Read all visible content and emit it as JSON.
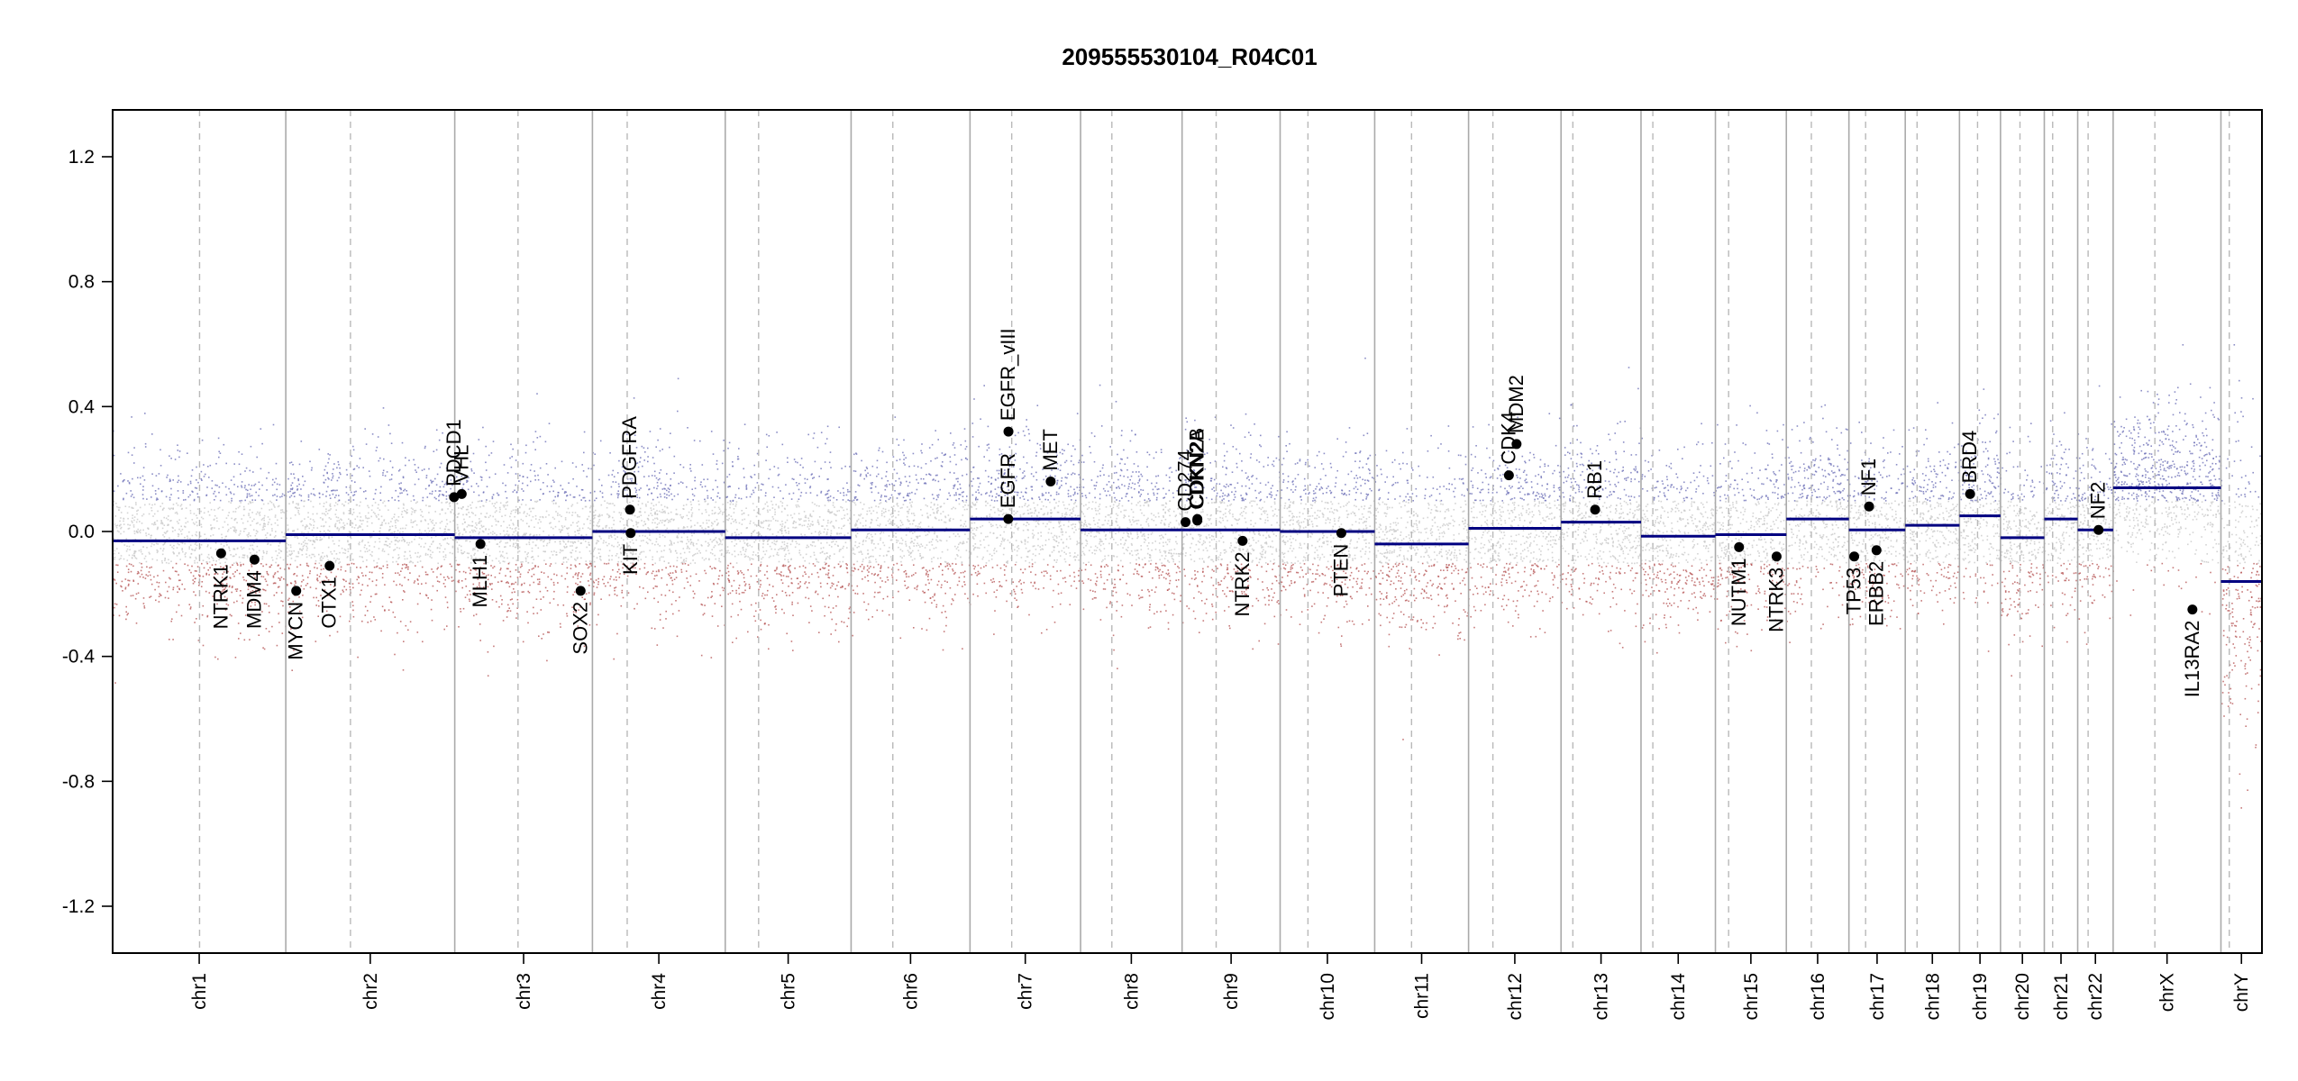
{
  "chart_data": {
    "type": "scatter",
    "title": "209555530104_R04C01",
    "xlabel": "",
    "ylabel": "",
    "ylim": [
      -1.35,
      1.35
    ],
    "yticks": [
      -1.2,
      -0.8,
      -0.4,
      0.0,
      0.4,
      0.8,
      1.2
    ],
    "ytick_labels": [
      "-1.2",
      "-0.8",
      "-0.4",
      "0.0",
      "0.4",
      "0.8",
      "1.2"
    ],
    "colors": {
      "gain": "#6f72b8",
      "neutral": "#c9c9c9",
      "loss": "#b85a5a",
      "segment": "#000080",
      "point": "#000000"
    },
    "chromosomes": [
      {
        "name": "chr1",
        "length": 249,
        "centromere": 125,
        "segments": [
          {
            "start": 0,
            "end": 249,
            "value": -0.03
          }
        ]
      },
      {
        "name": "chr2",
        "length": 243,
        "centromere": 93,
        "segments": [
          {
            "start": 0,
            "end": 243,
            "value": -0.01
          }
        ]
      },
      {
        "name": "chr3",
        "length": 198,
        "centromere": 91,
        "segments": [
          {
            "start": 0,
            "end": 198,
            "value": -0.02
          }
        ]
      },
      {
        "name": "chr4",
        "length": 191,
        "centromere": 50,
        "segments": [
          {
            "start": 0,
            "end": 191,
            "value": 0.0
          }
        ]
      },
      {
        "name": "chr5",
        "length": 181,
        "centromere": 48,
        "segments": [
          {
            "start": 0,
            "end": 181,
            "value": -0.02
          }
        ]
      },
      {
        "name": "chr6",
        "length": 171,
        "centromere": 60,
        "segments": [
          {
            "start": 0,
            "end": 171,
            "value": 0.005
          }
        ]
      },
      {
        "name": "chr7",
        "length": 159,
        "centromere": 60,
        "segments": [
          {
            "start": 0,
            "end": 159,
            "value": 0.04
          }
        ]
      },
      {
        "name": "chr8",
        "length": 146,
        "centromere": 45,
        "segments": [
          {
            "start": 0,
            "end": 146,
            "value": 0.005
          }
        ]
      },
      {
        "name": "chr9",
        "length": 141,
        "centromere": 49,
        "segments": [
          {
            "start": 0,
            "end": 141,
            "value": 0.005
          }
        ]
      },
      {
        "name": "chr10",
        "length": 136,
        "centromere": 40,
        "segments": [
          {
            "start": 0,
            "end": 136,
            "value": 0.0
          }
        ]
      },
      {
        "name": "chr11",
        "length": 135,
        "centromere": 53,
        "segments": [
          {
            "start": 0,
            "end": 135,
            "value": -0.04
          }
        ]
      },
      {
        "name": "chr12",
        "length": 133,
        "centromere": 35,
        "segments": [
          {
            "start": 0,
            "end": 133,
            "value": 0.01
          }
        ]
      },
      {
        "name": "chr13",
        "length": 115,
        "centromere": 17,
        "segments": [
          {
            "start": 0,
            "end": 115,
            "value": 0.03
          }
        ]
      },
      {
        "name": "chr14",
        "length": 107,
        "centromere": 17,
        "segments": [
          {
            "start": 0,
            "end": 107,
            "value": -0.015
          }
        ]
      },
      {
        "name": "chr15",
        "length": 102,
        "centromere": 19,
        "segments": [
          {
            "start": 0,
            "end": 102,
            "value": -0.01
          }
        ]
      },
      {
        "name": "chr16",
        "length": 90,
        "centromere": 36,
        "segments": [
          {
            "start": 0,
            "end": 90,
            "value": 0.04
          }
        ]
      },
      {
        "name": "chr17",
        "length": 81,
        "centromere": 24,
        "segments": [
          {
            "start": 0,
            "end": 81,
            "value": 0.005
          }
        ]
      },
      {
        "name": "chr18",
        "length": 78,
        "centromere": 17,
        "segments": [
          {
            "start": 0,
            "end": 78,
            "value": 0.02
          }
        ]
      },
      {
        "name": "chr19",
        "length": 59,
        "centromere": 26,
        "segments": [
          {
            "start": 0,
            "end": 59,
            "value": 0.05
          }
        ]
      },
      {
        "name": "chr20",
        "length": 63,
        "centromere": 28,
        "segments": [
          {
            "start": 0,
            "end": 63,
            "value": -0.02
          }
        ]
      },
      {
        "name": "chr21",
        "length": 48,
        "centromere": 12,
        "segments": [
          {
            "start": 0,
            "end": 48,
            "value": 0.04
          }
        ]
      },
      {
        "name": "chr22",
        "length": 51,
        "centromere": 15,
        "segments": [
          {
            "start": 0,
            "end": 51,
            "value": 0.005
          }
        ]
      },
      {
        "name": "chrX",
        "length": 155,
        "centromere": 60,
        "segments": [
          {
            "start": 0,
            "end": 155,
            "value": 0.14
          }
        ]
      },
      {
        "name": "chrY",
        "length": 59,
        "centromere": 12,
        "segments": [
          {
            "start": 0,
            "end": 59,
            "value": -0.16
          }
        ]
      }
    ],
    "genes": [
      {
        "name": "NTRK1",
        "chr": "chr1",
        "pos": 156,
        "value": -0.07,
        "side": "below"
      },
      {
        "name": "MDM4",
        "chr": "chr1",
        "pos": 204,
        "value": -0.09,
        "side": "below"
      },
      {
        "name": "MYCN",
        "chr": "chr2",
        "pos": 15,
        "value": -0.19,
        "side": "below"
      },
      {
        "name": "PDCD1",
        "chr": "chr2",
        "pos": 242,
        "value": 0.11,
        "side": "above"
      },
      {
        "name": "VHL",
        "chr": "chr3",
        "pos": 10,
        "value": 0.12,
        "side": "above"
      },
      {
        "name": "MLH1",
        "chr": "chr3",
        "pos": 37,
        "value": -0.04,
        "side": "below"
      },
      {
        "name": "SOX2",
        "chr": "chr3",
        "pos": 181,
        "value": -0.19,
        "side": "below"
      },
      {
        "name": "OTX1",
        "chr": "chr2",
        "pos": 63,
        "value": -0.11,
        "side": "below"
      },
      {
        "name": "KIT",
        "chr": "chr4",
        "pos": 55,
        "value": -0.005,
        "side": "below"
      },
      {
        "name": "PDGFRA",
        "chr": "chr4",
        "pos": 54,
        "value": 0.07,
        "side": "above"
      },
      {
        "name": "EGFR",
        "chr": "chr7",
        "pos": 55,
        "value": 0.04,
        "side": "above"
      },
      {
        "name": "EGFR_vIII",
        "chr": "chr7",
        "pos": 55.3,
        "value": 0.32,
        "side": "above"
      },
      {
        "name": "MET",
        "chr": "chr7",
        "pos": 116,
        "value": 0.16,
        "side": "above"
      },
      {
        "name": "CD274",
        "chr": "chr9",
        "pos": 5,
        "value": 0.03,
        "side": "above"
      },
      {
        "name": "CDKN2A",
        "chr": "chr9",
        "pos": 21.9,
        "value": 0.035,
        "side": "above"
      },
      {
        "name": "CDKN2B",
        "chr": "chr9",
        "pos": 22.0,
        "value": 0.04,
        "side": "above"
      },
      {
        "name": "NTRK2",
        "chr": "chr9",
        "pos": 87,
        "value": -0.03,
        "side": "below"
      },
      {
        "name": "PTEN",
        "chr": "chr10",
        "pos": 88,
        "value": -0.005,
        "side": "below"
      },
      {
        "name": "CDK4",
        "chr": "chr12",
        "pos": 58,
        "value": 0.18,
        "side": "above"
      },
      {
        "name": "MDM2",
        "chr": "chr12",
        "pos": 69,
        "value": 0.28,
        "side": "above"
      },
      {
        "name": "RB1",
        "chr": "chr13",
        "pos": 49,
        "value": 0.07,
        "side": "above"
      },
      {
        "name": "NUTM1",
        "chr": "chr15",
        "pos": 34,
        "value": -0.05,
        "side": "below"
      },
      {
        "name": "NTRK3",
        "chr": "chr15",
        "pos": 88,
        "value": -0.08,
        "side": "below"
      },
      {
        "name": "TP53",
        "chr": "chr17",
        "pos": 7.6,
        "value": -0.08,
        "side": "below"
      },
      {
        "name": "NF1",
        "chr": "chr17",
        "pos": 29,
        "value": 0.08,
        "side": "above"
      },
      {
        "name": "ERBB2",
        "chr": "chr17",
        "pos": 39.7,
        "value": -0.06,
        "side": "below"
      },
      {
        "name": "BRD4",
        "chr": "chr19",
        "pos": 15.3,
        "value": 0.12,
        "side": "above"
      },
      {
        "name": "NF2",
        "chr": "chr22",
        "pos": 30,
        "value": 0.005,
        "side": "above"
      },
      {
        "name": "IL13RA2",
        "chr": "chrX",
        "pos": 114,
        "value": -0.25,
        "side": "below"
      }
    ],
    "bin_points": {
      "generated": true,
      "per_chromosome_density": 14,
      "spread_sd": 0.13
    },
    "grid": false,
    "legend": "none"
  }
}
